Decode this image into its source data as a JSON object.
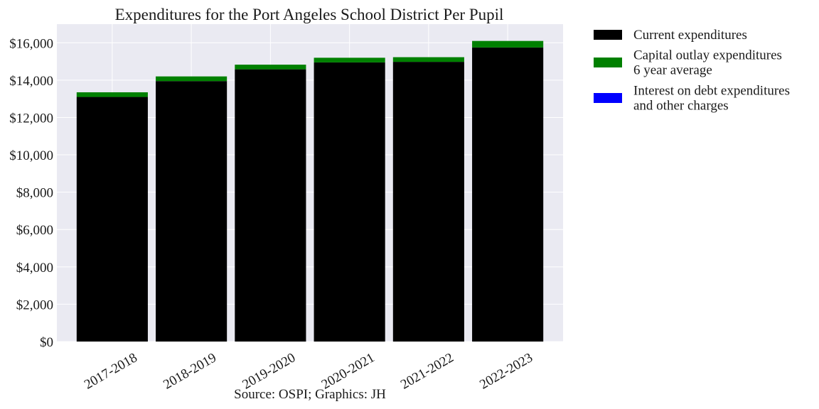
{
  "chart_data": {
    "type": "bar",
    "stacked": true,
    "title": "Expenditures for the Port Angeles School District Per Pupil",
    "caption": "Source: OSPI; Graphics: JH",
    "xlabel": "",
    "ylabel": "",
    "categories": [
      "2017-2018",
      "2018-2019",
      "2019-2020",
      "2020-2021",
      "2021-2022",
      "2022-2023"
    ],
    "ylim": [
      0,
      17000
    ],
    "y_ticks": [
      0,
      2000,
      4000,
      6000,
      8000,
      10000,
      12000,
      14000,
      16000
    ],
    "y_tick_labels": [
      "$0",
      "$2,000",
      "$4,000",
      "$6,000",
      "$8,000",
      "$10,000",
      "$12,000",
      "$14,000",
      "$16,000"
    ],
    "grid": true,
    "legend_position": "right, outside plot",
    "series": [
      {
        "name": "Current expenditures",
        "legend_lines": [
          "Current expenditures"
        ],
        "color": "#000000",
        "values": [
          13100,
          13950,
          14580,
          14950,
          14980,
          15750
        ]
      },
      {
        "name": "Capital outlay expenditures 6 year average",
        "legend_lines": [
          "Capital outlay expenditures",
          "6 year average"
        ],
        "color": "#008000",
        "values": [
          250,
          250,
          250,
          250,
          250,
          350
        ]
      },
      {
        "name": "Interest on debt expenditures and other charges",
        "legend_lines": [
          "Interest on debt expenditures",
          "and other charges"
        ],
        "color": "#0000ff",
        "values": [
          0,
          0,
          0,
          0,
          0,
          0
        ]
      }
    ],
    "colors": {
      "plot_background": "#eaeaf2",
      "grid": "#ffffff",
      "text": "#1a1a1a"
    }
  }
}
